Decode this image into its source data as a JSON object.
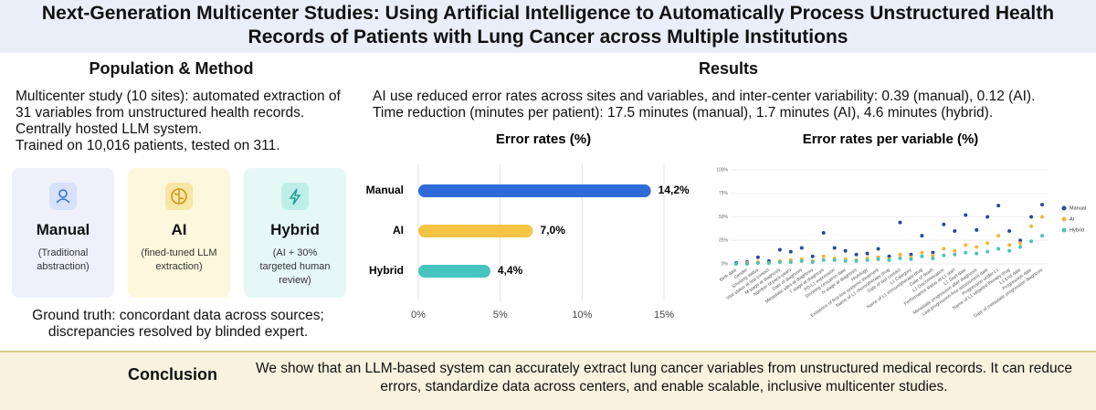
{
  "header": {
    "title": "Next-Generation Multicenter Studies: Using Artificial Intelligence to Automatically Process Unstructured Health Records of Patients with Lung Cancer across Multiple Institutions"
  },
  "population_method": {
    "heading": "Population & Method",
    "lines": [
      "Multicenter study (10 sites): automated extraction of",
      "31 variables from  unstructured health records.",
      "Centrally hosted LLM system.",
      "Trained on 10,016 patients, tested on 311."
    ],
    "cards": [
      {
        "title": "Manual",
        "description": "(Traditional abstraction)"
      },
      {
        "title": "AI",
        "description": "(fined-tuned LLM extraction)"
      },
      {
        "title": "Hybrid",
        "description": "(AI + 30% targeted human review)"
      }
    ],
    "ground_truth": [
      "Ground truth: concordant data across sources;",
      "discrepancies resolved by blinded expert."
    ]
  },
  "results": {
    "heading": "Results",
    "lines": [
      "AI use reduced error rates across sites and variables, and inter-center variability: 0.39 (manual), 0.12 (AI).",
      "Time reduction (minutes per patient): 17.5 minutes (manual), 1.7 minutes (AI), 4.6 minutes (hybrid)."
    ]
  },
  "chart_data": [
    {
      "type": "bar",
      "orientation": "horizontal",
      "title": "Error rates (%)",
      "categories": [
        "Manual",
        "AI",
        "Hybrid"
      ],
      "values": [
        14.2,
        7.0,
        4.4
      ],
      "value_labels": [
        "14,2%",
        "7,0%",
        "4,4%"
      ],
      "colors": [
        "#2f6bd8",
        "#f6c445",
        "#45c4c0"
      ],
      "xlim": [
        0,
        15
      ],
      "xticks": [
        {
          "value": 0,
          "label": "0%"
        },
        {
          "value": 5,
          "label": "5%"
        },
        {
          "value": 10,
          "label": "10%"
        },
        {
          "value": 15,
          "label": "15%"
        }
      ],
      "grid": true
    },
    {
      "type": "dot",
      "title": "Error rates per variable (%)",
      "categories": [
        "Birth date",
        "Gender",
        "Smoking status",
        "Vital status at last contact",
        "M stage at diagnosis",
        "Number of pack-years",
        "Date of diagnosis",
        "Metastatic sites at diagnosis",
        "T stage at diagnosis",
        "PD-L1 expression",
        "Smoking cessation date",
        "N stage at diagnosis",
        "Histology",
        "Existence of first-line systemic treatment",
        "Name of L1 chemotherapy drug",
        "Date of last contact",
        "L1 Category",
        "Name of L1 immunotherapy drug",
        "Date of death",
        "L1 Discontinuation",
        "Performance status at L1 start",
        "L1 Start date",
        "Metastatic progression after diagnosis",
        "Last progression-free assessment date",
        "Progression under L1",
        "Name of L1 targeted therapy drug",
        "L1 End date",
        "Progression date",
        "Date of metastatic progression diagnosis"
      ],
      "series": [
        {
          "name": "Manual",
          "color": "#2b4a9b",
          "values": [
            1,
            2,
            7,
            3,
            15,
            13,
            17,
            8,
            33,
            17,
            14,
            10,
            11,
            16,
            8,
            44,
            10,
            30,
            12,
            42,
            35,
            52,
            36,
            50,
            62,
            35,
            25,
            50,
            63
          ]
        },
        {
          "name": "AI",
          "color": "#f2b53a",
          "values": [
            0,
            1,
            2,
            1,
            3,
            4,
            5,
            3,
            8,
            6,
            5,
            4,
            6,
            7,
            5,
            10,
            7,
            12,
            9,
            16,
            14,
            20,
            18,
            22,
            30,
            20,
            22,
            40,
            50
          ]
        },
        {
          "name": "Hybrid",
          "color": "#4cc3b5",
          "values": [
            0,
            0,
            1,
            1,
            2,
            2,
            3,
            2,
            4,
            4,
            3,
            3,
            4,
            5,
            4,
            6,
            5,
            8,
            6,
            9,
            10,
            12,
            11,
            13,
            16,
            14,
            18,
            24,
            30
          ]
        }
      ],
      "ylim": [
        0,
        100
      ],
      "yticks": [
        {
          "value": 0,
          "label": "0%"
        },
        {
          "value": 25,
          "label": "25%"
        },
        {
          "value": 50,
          "label": "50%"
        },
        {
          "value": 75,
          "label": "75%"
        },
        {
          "value": 100,
          "label": "100%"
        }
      ],
      "grid": true,
      "legend": "right"
    }
  ],
  "conclusion": {
    "label": "Conclusion",
    "text": "We show that an LLM-based system can accurately extract lung cancer variables from unstructured medical records. It can reduce errors, standardize data across centers, and enable scalable, inclusive multicenter studies."
  }
}
